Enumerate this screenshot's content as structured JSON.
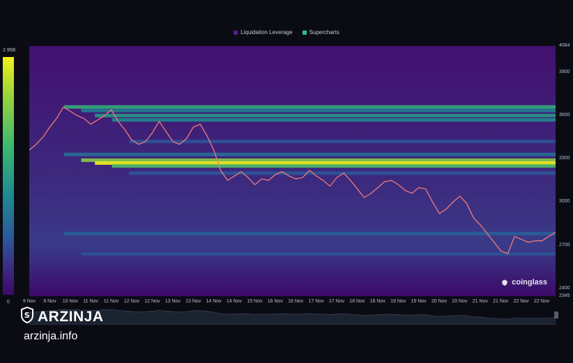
{
  "legend": {
    "items": [
      {
        "label": "Liquidation Leverage",
        "color": "#5b1e8a"
      },
      {
        "label": "Supercharts",
        "color": "#23c48a"
      }
    ]
  },
  "colorbar": {
    "max_label": "2.95B",
    "min_label": "0"
  },
  "watermark": {
    "text": "coinglass"
  },
  "brand": {
    "name": "ARZINJA",
    "url": "arzinja.info"
  },
  "chart_data": {
    "type": "heatmap",
    "title": "",
    "xlabel": "",
    "ylabel": "",
    "ylim": [
      2345,
      4084
    ],
    "y_ticks": [
      "4084",
      "3900",
      "3600",
      "3300",
      "3000",
      "2700",
      "2400",
      "2345"
    ],
    "x_ticks": [
      "9 Nov",
      "9 Nov",
      "10 Nov",
      "11 Nov",
      "11 Nov",
      "12 Nov",
      "12 Nov",
      "13 Nov",
      "13 Nov",
      "14 Nov",
      "14 Nov",
      "15 Nov",
      "16 Nov",
      "16 Nov",
      "17 Nov",
      "17 Nov",
      "18 Nov",
      "18 Nov",
      "19 Nov",
      "19 Nov",
      "20 Nov",
      "20 Nov",
      "21 Nov",
      "21 Nov",
      "22 Nov",
      "22 Nov"
    ],
    "colorscale": [
      "#3d086a",
      "#3c2d84",
      "#2a5b9a",
      "#1f8a8f",
      "#3ab970",
      "#9ad33a",
      "#f2f21a"
    ],
    "liquidation_bands": [
      {
        "price": 3660,
        "intensity": 0.62
      },
      {
        "price": 3635,
        "intensity": 0.45
      },
      {
        "price": 3600,
        "intensity": 0.55
      },
      {
        "price": 3570,
        "intensity": 0.5
      },
      {
        "price": 3420,
        "intensity": 0.3
      },
      {
        "price": 3330,
        "intensity": 0.4
      },
      {
        "price": 3290,
        "intensity": 0.8
      },
      {
        "price": 3270,
        "intensity": 1.0
      },
      {
        "price": 3250,
        "intensity": 0.7
      },
      {
        "price": 3200,
        "intensity": 0.32
      },
      {
        "price": 2780,
        "intensity": 0.35
      },
      {
        "price": 2640,
        "intensity": 0.3
      }
    ],
    "price_series": [
      3360,
      3400,
      3450,
      3520,
      3580,
      3660,
      3630,
      3600,
      3580,
      3540,
      3570,
      3600,
      3640,
      3560,
      3500,
      3430,
      3400,
      3420,
      3480,
      3560,
      3490,
      3420,
      3400,
      3440,
      3520,
      3540,
      3460,
      3360,
      3220,
      3150,
      3180,
      3210,
      3170,
      3120,
      3160,
      3150,
      3190,
      3210,
      3180,
      3160,
      3170,
      3220,
      3180,
      3150,
      3110,
      3170,
      3200,
      3150,
      3090,
      3030,
      3060,
      3100,
      3140,
      3150,
      3120,
      3080,
      3060,
      3100,
      3090,
      3000,
      2920,
      2950,
      3000,
      3040,
      2990,
      2890,
      2840,
      2780,
      2720,
      2660,
      2640,
      2760,
      2740,
      2720,
      2730,
      2730,
      2760,
      2790
    ]
  }
}
